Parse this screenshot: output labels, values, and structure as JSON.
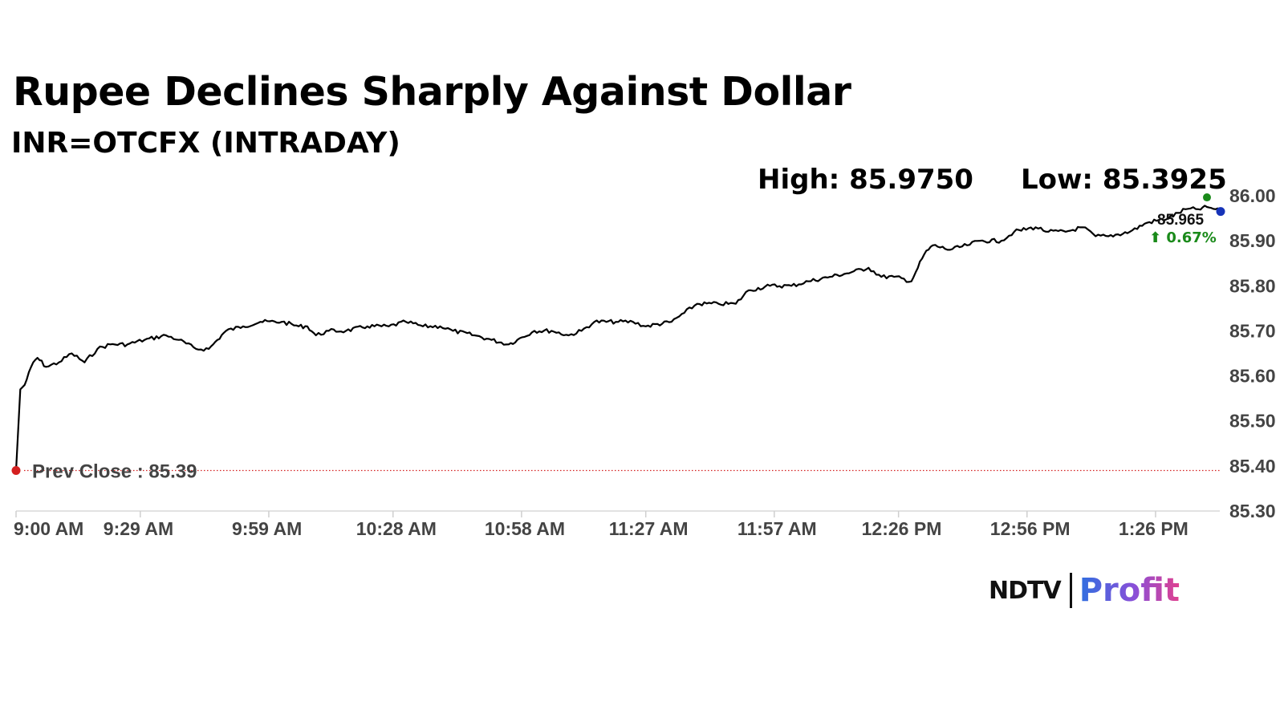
{
  "header": {
    "title": "Rupee Declines Sharply Against Dollar",
    "subtitle": "INR=OTCFX (INTRADAY)",
    "high_label": "High: 85.9750",
    "low_label": "Low: 85.3925"
  },
  "logo": {
    "brand": "NDTV",
    "product": "Profit",
    "colors": {
      "ndtv": "#111111",
      "profit_start": "#2f6fe0",
      "profit_end": "#e0418f"
    }
  },
  "chart_data": {
    "type": "line",
    "title": "Rupee Declines Sharply Against Dollar",
    "subtitle": "INR=OTCFX (INTRADAY)",
    "xlabel": "",
    "ylabel": "",
    "x_ticks": [
      "9:00 AM",
      "9:29 AM",
      "9:59 AM",
      "10:28 AM",
      "10:58 AM",
      "11:27 AM",
      "11:57 AM",
      "12:26 PM",
      "12:56 PM",
      "1:26 PM"
    ],
    "xlim": [
      "9:00 AM",
      "1:41 PM"
    ],
    "y_ticks": [
      "85.30",
      "85.40",
      "85.50",
      "85.60",
      "85.70",
      "85.80",
      "85.90",
      "86.00"
    ],
    "ylim": [
      85.3,
      86.0
    ],
    "y_axis_position": "right",
    "grid": false,
    "line_color": "#000000",
    "series": [
      {
        "name": "",
        "points": [
          [
            "9:00 AM",
            85.39
          ],
          [
            "9:01 AM",
            85.57
          ],
          [
            "9:02 AM",
            85.58
          ],
          [
            "9:04 AM",
            85.63
          ],
          [
            "9:05 AM",
            85.64
          ],
          [
            "9:07 AM",
            85.62
          ],
          [
            "9:10 AM",
            85.63
          ],
          [
            "9:13 AM",
            85.65
          ],
          [
            "9:16 AM",
            85.63
          ],
          [
            "9:19 AM",
            85.66
          ],
          [
            "9:22 AM",
            85.67
          ],
          [
            "9:26 AM",
            85.67
          ],
          [
            "9:30 AM",
            85.68
          ],
          [
            "9:35 AM",
            85.69
          ],
          [
            "9:38 AM",
            85.68
          ],
          [
            "9:42 AM",
            85.66
          ],
          [
            "9:45 AM",
            85.66
          ],
          [
            "9:47 AM",
            85.68
          ],
          [
            "9:49 AM",
            85.7
          ],
          [
            "9:53 AM",
            85.71
          ],
          [
            "9:57 AM",
            85.72
          ],
          [
            "10:02 AM",
            85.72
          ],
          [
            "10:06 AM",
            85.71
          ],
          [
            "10:08 AM",
            85.71
          ],
          [
            "10:10 AM",
            85.69
          ],
          [
            "10:13 AM",
            85.7
          ],
          [
            "10:17 AM",
            85.7
          ],
          [
            "10:22 AM",
            85.71
          ],
          [
            "10:27 AM",
            85.71
          ],
          [
            "10:31 AM",
            85.72
          ],
          [
            "10:35 AM",
            85.71
          ],
          [
            "10:39 AM",
            85.71
          ],
          [
            "10:42 AM",
            85.7
          ],
          [
            "10:47 AM",
            85.69
          ],
          [
            "10:51 AM",
            85.68
          ],
          [
            "10:55 AM",
            85.67
          ],
          [
            "10:57 AM",
            85.68
          ],
          [
            "11:01 AM",
            85.7
          ],
          [
            "11:05 AM",
            85.7
          ],
          [
            "11:09 AM",
            85.69
          ],
          [
            "11:12 AM",
            85.7
          ],
          [
            "11:15 AM",
            85.72
          ],
          [
            "11:20 AM",
            85.72
          ],
          [
            "11:24 AM",
            85.72
          ],
          [
            "11:27 AM",
            85.71
          ],
          [
            "11:33 AM",
            85.72
          ],
          [
            "11:36 AM",
            85.74
          ],
          [
            "11:39 AM",
            85.76
          ],
          [
            "11:44 AM",
            85.76
          ],
          [
            "11:48 AM",
            85.76
          ],
          [
            "11:51 AM",
            85.79
          ],
          [
            "11:56 AM",
            85.8
          ],
          [
            "12:01 PM",
            85.8
          ],
          [
            "12:05 PM",
            85.81
          ],
          [
            "12:10 PM",
            85.82
          ],
          [
            "12:15 PM",
            85.83
          ],
          [
            "12:19 PM",
            85.84
          ],
          [
            "12:22 PM",
            85.82
          ],
          [
            "12:25 PM",
            85.82
          ],
          [
            "12:29 PM",
            85.81
          ],
          [
            "12:30 PM",
            85.83
          ],
          [
            "12:32 PM",
            85.87
          ],
          [
            "12:34 PM",
            85.89
          ],
          [
            "12:38 PM",
            85.88
          ],
          [
            "12:42 PM",
            85.89
          ],
          [
            "12:45 PM",
            85.9
          ],
          [
            "12:50 PM",
            85.9
          ],
          [
            "12:53 PM",
            85.92
          ],
          [
            "12:58 PM",
            85.93
          ],
          [
            "1:01 PM",
            85.92
          ],
          [
            "1:05 PM",
            85.92
          ],
          [
            "1:09 PM",
            85.93
          ],
          [
            "1:12 PM",
            85.91
          ],
          [
            "1:15 PM",
            85.91
          ],
          [
            "1:20 PM",
            85.92
          ],
          [
            "1:24 PM",
            85.94
          ],
          [
            "1:29 PM",
            85.95
          ],
          [
            "1:33 PM",
            85.97
          ],
          [
            "1:36 PM",
            85.97
          ],
          [
            "1:38 PM",
            85.975
          ],
          [
            "1:40 PM",
            85.97
          ],
          [
            "1:41 PM",
            85.965
          ]
        ]
      }
    ],
    "prev_close": {
      "label": "Prev Close : 85.39",
      "value": 85.39,
      "color": "#d42020",
      "style": "dotted"
    },
    "high_marker": {
      "time": "1:38 PM",
      "value": 85.975,
      "color": "#1a8a1a"
    },
    "last_marker": {
      "time": "1:41 PM",
      "value": 85.965,
      "color": "#1633b8"
    },
    "last_value_label": "85.965",
    "change_label": "⬆ 0.67%",
    "change_color": "#1a8a1a"
  }
}
